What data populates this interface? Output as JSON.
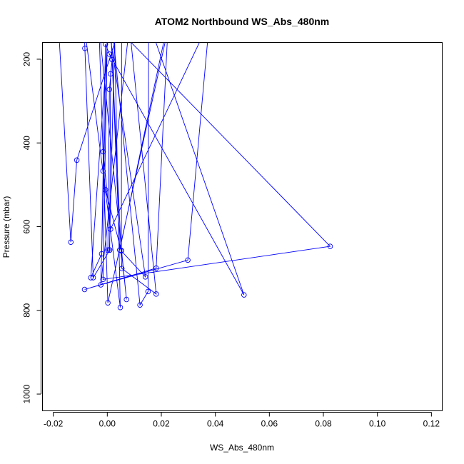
{
  "chart_data": {
    "type": "line",
    "title": "ATOM2 Northbound WS_Abs_480nm",
    "xlabel": "WS_Abs_480nm",
    "ylabel": "Pressure (mbar)",
    "xlim": [
      -0.024,
      0.124
    ],
    "ylim": [
      1040,
      160
    ],
    "y_inverted": true,
    "x_ticks": [
      -0.02,
      0.0,
      0.02,
      0.04,
      0.06,
      0.08,
      0.1,
      0.12
    ],
    "x_tick_labels": [
      "-0.02",
      "0.00",
      "0.02",
      "0.04",
      "0.06",
      "0.08",
      "0.10",
      "0.12"
    ],
    "y_ticks": [
      200,
      400,
      600,
      800,
      1000
    ],
    "y_tick_labels": [
      "200",
      "400",
      "600",
      "800",
      "1000"
    ],
    "grid": false,
    "legend": false,
    "series": [
      {
        "color": "#0000ff",
        "marker": "open-circle",
        "points": [
          [
            -0.0179,
            140
          ],
          [
            -0.0135,
            637
          ],
          [
            -0.0113,
            441
          ],
          [
            0.0053,
            110
          ],
          [
            0.0052,
            657
          ],
          [
            0.0071,
            774
          ],
          [
            -0.0031,
            120
          ],
          [
            0.0002,
            782
          ],
          [
            0.0224,
            130
          ],
          [
            0.0181,
            699
          ],
          [
            -0.0084,
            750
          ],
          [
            0.0298,
            680
          ],
          [
            0.0378,
            110
          ],
          [
            0.0012,
            606
          ],
          [
            -0.0015,
            421
          ],
          [
            -0.0016,
            467
          ],
          [
            -0.0007,
            512
          ],
          [
            0.0052,
            658
          ],
          [
            0.0141,
            720
          ],
          [
            0.0005,
            120
          ],
          [
            -0.0061,
            722
          ],
          [
            -0.0021,
            665
          ],
          [
            -0.0007,
            164
          ],
          [
            0.0008,
            188
          ],
          [
            0.0506,
            763
          ],
          [
            0.0153,
            110
          ],
          [
            0.0151,
            755
          ],
          [
            0.0121,
            787
          ],
          [
            0.0018,
            120
          ],
          [
            0.0026,
            110
          ],
          [
            0.0048,
            793
          ],
          [
            -0.0087,
            110
          ],
          [
            -0.0083,
            174
          ],
          [
            -0.0052,
            722
          ],
          [
            0.0009,
            656
          ],
          [
            0.0012,
            235
          ],
          [
            0.0018,
            201
          ],
          [
            0.0008,
            272
          ],
          [
            0.0002,
            656
          ],
          [
            0.0008,
            656
          ],
          [
            0.0028,
            120
          ],
          [
            0.0825,
            647
          ],
          [
            -0.0016,
            726
          ],
          [
            0.0001,
            110
          ],
          [
            -0.0024,
            739
          ],
          [
            0.0082,
            120
          ],
          [
            0.0181,
            761
          ],
          [
            0.0054,
            700
          ],
          [
            0.0014,
            140
          ],
          [
            0.0046,
            656
          ],
          [
            0.0225,
            110
          ]
        ]
      }
    ]
  }
}
